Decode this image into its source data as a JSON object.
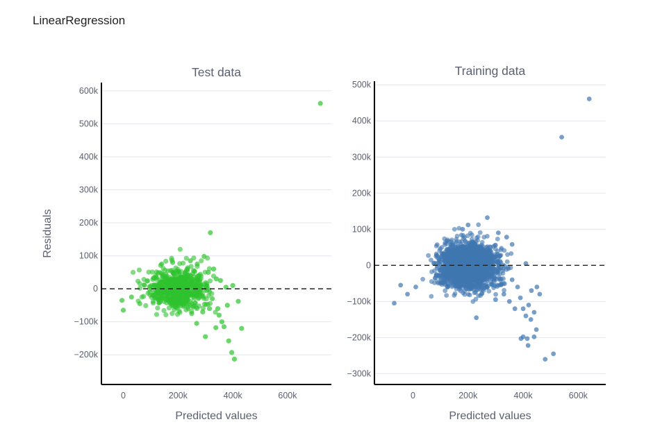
{
  "title": "LinearRegression",
  "colors": {
    "test": "#2ec32e",
    "train": "#3f76b0",
    "grid": "#e4e6ee",
    "axis": "#000000",
    "text": "#5a6070"
  },
  "chart_data": [
    {
      "type": "scatter",
      "title": "Test data",
      "xlabel": "Predicted values",
      "ylabel": "Residuals",
      "xlim": [
        -80000,
        760000
      ],
      "ylim": [
        -290000,
        625000
      ],
      "xticks": [
        0,
        200000,
        400000,
        600000
      ],
      "xtick_labels": [
        "0",
        "200k",
        "400k",
        "600k"
      ],
      "yticks": [
        -200000,
        -100000,
        0,
        100000,
        200000,
        300000,
        400000,
        500000,
        600000
      ],
      "ytick_labels": [
        "−200k",
        "−100k",
        "0",
        "100k",
        "200k",
        "300k",
        "400k",
        "500k",
        "600k"
      ],
      "reference_line_y": 0,
      "grid": true,
      "cluster": {
        "count": 700,
        "x_center": 200000,
        "x_spread": 100000,
        "y_spread": 30000,
        "seed": 7
      },
      "points": [
        [
          720000,
          562000
        ],
        [
          318000,
          170000
        ],
        [
          295000,
          98000
        ],
        [
          330000,
          60000
        ],
        [
          340000,
          30000
        ],
        [
          400000,
          10000
        ],
        [
          325000,
          -30000
        ],
        [
          345000,
          -60000
        ],
        [
          350000,
          -80000
        ],
        [
          360000,
          -100000
        ],
        [
          380000,
          -50000
        ],
        [
          420000,
          -38000
        ],
        [
          268000,
          -105000
        ],
        [
          300000,
          -145000
        ],
        [
          338000,
          -118000
        ],
        [
          368000,
          -115000
        ],
        [
          432000,
          -120000
        ],
        [
          385000,
          -158000
        ],
        [
          396000,
          -193000
        ],
        [
          406000,
          -213000
        ],
        [
          0,
          -65000
        ],
        [
          -5000,
          -35000
        ],
        [
          30000,
          -25000
        ],
        [
          60000,
          -45000
        ],
        [
          245000,
          85000
        ],
        [
          270000,
          75000
        ],
        [
          310000,
          50000
        ],
        [
          355000,
          25000
        ],
        [
          375000,
          5000
        ],
        [
          290000,
          -70000
        ],
        [
          315000,
          -60000
        ],
        [
          250000,
          -75000
        ],
        [
          140000,
          75000
        ],
        [
          180000,
          80000
        ]
      ]
    },
    {
      "type": "scatter",
      "title": "Training data",
      "xlabel": "Predicted values",
      "ylabel": "",
      "xlim": [
        -140000,
        700000
      ],
      "ylim": [
        -330000,
        510000
      ],
      "xticks": [
        0,
        200000,
        400000,
        600000
      ],
      "xtick_labels": [
        "0",
        "200k",
        "400k",
        "600k"
      ],
      "yticks": [
        -300000,
        -200000,
        -100000,
        0,
        100000,
        200000,
        300000,
        400000,
        500000
      ],
      "ytick_labels": [
        "−300k",
        "−200k",
        "−100k",
        "0",
        "100k",
        "200k",
        "300k",
        "400k",
        "500k"
      ],
      "reference_line_y": 0,
      "grid": true,
      "cluster": {
        "count": 2100,
        "x_center": 200000,
        "x_spread": 100000,
        "y_spread": 30000,
        "seed": 13
      },
      "points": [
        [
          640000,
          461000
        ],
        [
          540000,
          355000
        ],
        [
          -68000,
          -105000
        ],
        [
          -45000,
          -55000
        ],
        [
          -20000,
          -80000
        ],
        [
          10000,
          -60000
        ],
        [
          270000,
          132000
        ],
        [
          200000,
          112000
        ],
        [
          180000,
          100000
        ],
        [
          310000,
          90000
        ],
        [
          340000,
          78000
        ],
        [
          360000,
          58000
        ],
        [
          410000,
          5000
        ],
        [
          330000,
          -80000
        ],
        [
          350000,
          -100000
        ],
        [
          390000,
          -90000
        ],
        [
          420000,
          -110000
        ],
        [
          440000,
          -130000
        ],
        [
          400000,
          -120000
        ],
        [
          370000,
          -120000
        ],
        [
          230000,
          -145000
        ],
        [
          300000,
          -95000
        ],
        [
          410000,
          -140000
        ],
        [
          428000,
          -150000
        ],
        [
          448000,
          -178000
        ],
        [
          400000,
          -198000
        ],
        [
          415000,
          -203000
        ],
        [
          392000,
          -203000
        ],
        [
          440000,
          -198000
        ],
        [
          418000,
          -222000
        ],
        [
          480000,
          -260000
        ],
        [
          510000,
          -245000
        ],
        [
          380000,
          -60000
        ],
        [
          360000,
          -40000
        ],
        [
          430000,
          -70000
        ],
        [
          450000,
          -60000
        ],
        [
          460000,
          -80000
        ]
      ]
    }
  ]
}
